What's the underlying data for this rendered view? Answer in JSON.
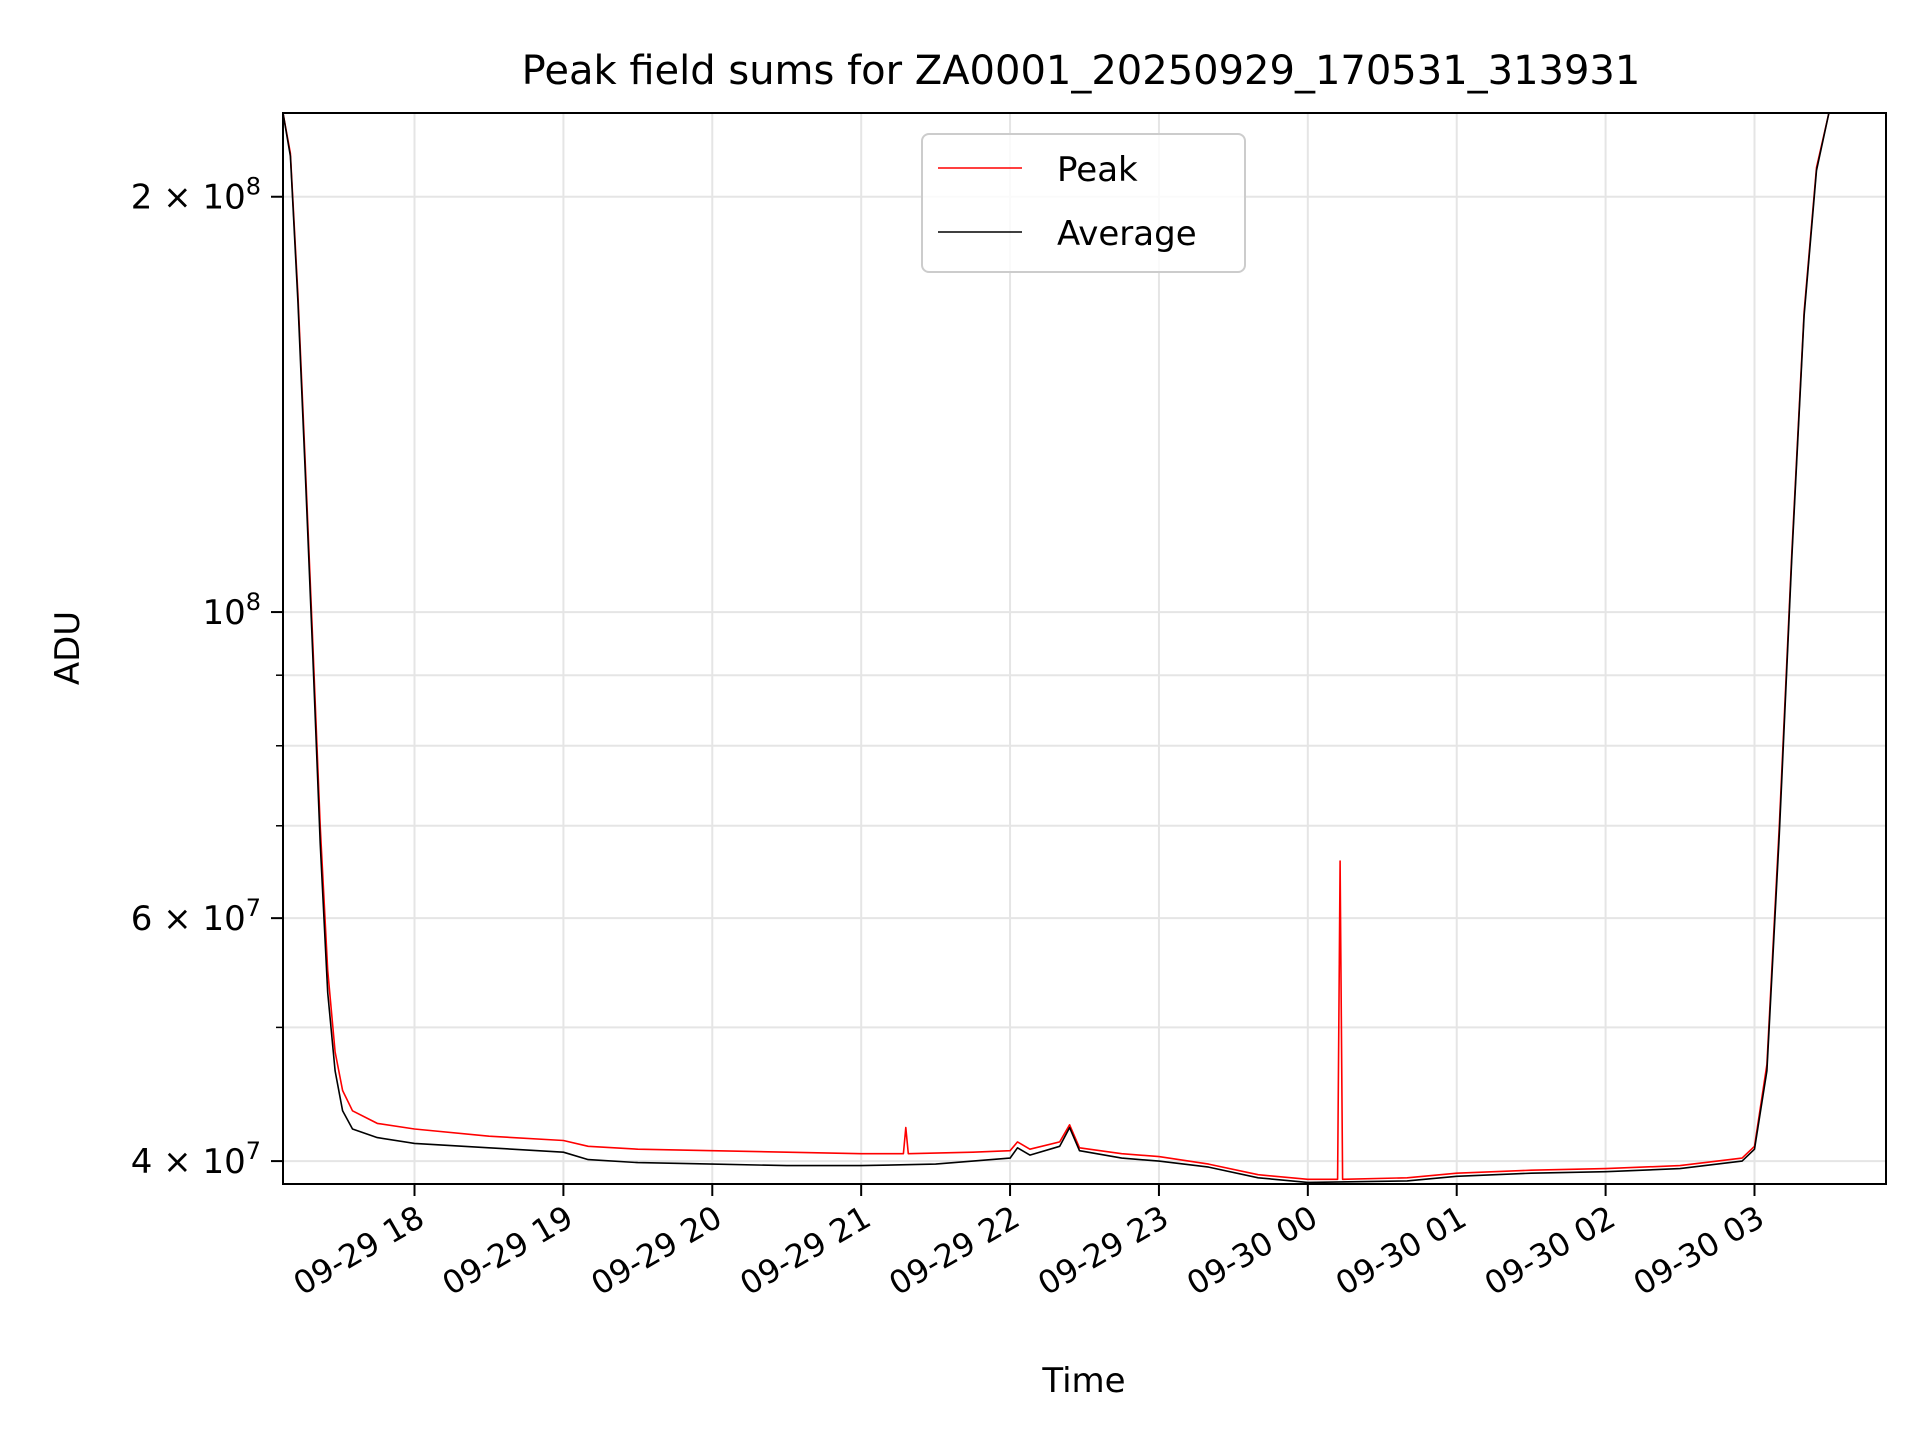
{
  "chart_data": {
    "type": "line",
    "title": "Peak field sums for ZA0001_20250929_170531_313931",
    "xlabel": "Time",
    "ylabel": "ADU",
    "y_scale": "log",
    "ylim": [
      38500000,
      230000000
    ],
    "xlim": [
      "2025-09-29 17:07",
      "2025-09-30 03:53"
    ],
    "grid": true,
    "legend_position": "upper center",
    "x_ticks": [
      {
        "value": "2025-09-29 18:00",
        "label": "09-29 18"
      },
      {
        "value": "2025-09-29 19:00",
        "label": "09-29 19"
      },
      {
        "value": "2025-09-29 20:00",
        "label": "09-29 20"
      },
      {
        "value": "2025-09-29 21:00",
        "label": "09-29 21"
      },
      {
        "value": "2025-09-29 22:00",
        "label": "09-29 22"
      },
      {
        "value": "2025-09-29 23:00",
        "label": "09-29 23"
      },
      {
        "value": "2025-09-30 00:00",
        "label": "09-30 00"
      },
      {
        "value": "2025-09-30 01:00",
        "label": "09-30 01"
      },
      {
        "value": "2025-09-30 02:00",
        "label": "09-30 02"
      },
      {
        "value": "2025-09-30 03:00",
        "label": "09-30 03"
      }
    ],
    "y_major_ticks": [
      {
        "value": 40000000,
        "mantissa": "4",
        "exponent": "7"
      },
      {
        "value": 60000000,
        "mantissa": "6",
        "exponent": "7"
      },
      {
        "value": 100000000,
        "mantissa": "",
        "exponent": "8"
      },
      {
        "value": 200000000,
        "mantissa": "2",
        "exponent": "8"
      }
    ],
    "y_minor_ticks": [
      50000000,
      70000000,
      80000000,
      90000000
    ],
    "series": [
      {
        "name": "Peak",
        "color": "#ff0000",
        "points": [
          [
            "2025-09-29 17:07",
            230000000
          ],
          [
            "2025-09-29 17:10",
            215000000
          ],
          [
            "2025-09-29 17:13",
            170000000
          ],
          [
            "2025-09-29 17:16",
            128000000
          ],
          [
            "2025-09-29 17:19",
            95000000
          ],
          [
            "2025-09-29 17:22",
            70000000
          ],
          [
            "2025-09-29 17:25",
            55000000
          ],
          [
            "2025-09-29 17:28",
            48000000
          ],
          [
            "2025-09-29 17:31",
            45000000
          ],
          [
            "2025-09-29 17:35",
            43500000
          ],
          [
            "2025-09-29 17:45",
            42600000
          ],
          [
            "2025-09-29 18:00",
            42200000
          ],
          [
            "2025-09-29 18:30",
            41700000
          ],
          [
            "2025-09-29 19:00",
            41400000
          ],
          [
            "2025-09-29 19:10",
            41000000
          ],
          [
            "2025-09-29 19:30",
            40800000
          ],
          [
            "2025-09-29 20:00",
            40700000
          ],
          [
            "2025-09-29 20:30",
            40600000
          ],
          [
            "2025-09-29 21:00",
            40500000
          ],
          [
            "2025-09-29 21:17",
            40500000
          ],
          [
            "2025-09-29 21:18",
            42300000
          ],
          [
            "2025-09-29 21:19",
            40500000
          ],
          [
            "2025-09-29 21:45",
            40600000
          ],
          [
            "2025-09-29 22:00",
            40700000
          ],
          [
            "2025-09-29 22:03",
            41300000
          ],
          [
            "2025-09-29 22:08",
            40800000
          ],
          [
            "2025-09-29 22:20",
            41300000
          ],
          [
            "2025-09-29 22:24",
            42500000
          ],
          [
            "2025-09-29 22:28",
            40900000
          ],
          [
            "2025-09-29 22:45",
            40500000
          ],
          [
            "2025-09-29 23:00",
            40300000
          ],
          [
            "2025-09-29 23:20",
            39800000
          ],
          [
            "2025-09-29 23:40",
            39100000
          ],
          [
            "2025-09-30 00:00",
            38800000
          ],
          [
            "2025-09-30 00:12",
            38800000
          ],
          [
            "2025-09-30 00:13",
            66000000
          ],
          [
            "2025-09-30 00:14",
            38800000
          ],
          [
            "2025-09-30 00:40",
            38900000
          ],
          [
            "2025-09-30 01:00",
            39200000
          ],
          [
            "2025-09-30 01:30",
            39400000
          ],
          [
            "2025-09-30 02:00",
            39500000
          ],
          [
            "2025-09-30 02:30",
            39700000
          ],
          [
            "2025-09-30 02:55",
            40200000
          ],
          [
            "2025-09-30 03:00",
            41000000
          ],
          [
            "2025-09-30 03:05",
            47000000
          ],
          [
            "2025-09-30 03:10",
            70000000
          ],
          [
            "2025-09-30 03:15",
            110000000
          ],
          [
            "2025-09-30 03:20",
            165000000
          ],
          [
            "2025-09-30 03:25",
            210000000
          ],
          [
            "2025-09-30 03:30",
            230000000
          ],
          [
            "2025-09-30 03:53",
            230000000
          ]
        ]
      },
      {
        "name": "Average",
        "color": "#000000",
        "points": [
          [
            "2025-09-29 17:07",
            230000000
          ],
          [
            "2025-09-29 17:10",
            214000000
          ],
          [
            "2025-09-29 17:13",
            168000000
          ],
          [
            "2025-09-29 17:16",
            126000000
          ],
          [
            "2025-09-29 17:19",
            93000000
          ],
          [
            "2025-09-29 17:22",
            68000000
          ],
          [
            "2025-09-29 17:25",
            53000000
          ],
          [
            "2025-09-29 17:28",
            46500000
          ],
          [
            "2025-09-29 17:31",
            43500000
          ],
          [
            "2025-09-29 17:35",
            42200000
          ],
          [
            "2025-09-29 17:45",
            41600000
          ],
          [
            "2025-09-29 18:00",
            41200000
          ],
          [
            "2025-09-29 18:30",
            40900000
          ],
          [
            "2025-09-29 19:00",
            40600000
          ],
          [
            "2025-09-29 19:10",
            40100000
          ],
          [
            "2025-09-29 19:30",
            39900000
          ],
          [
            "2025-09-29 20:00",
            39800000
          ],
          [
            "2025-09-29 20:30",
            39700000
          ],
          [
            "2025-09-29 21:00",
            39700000
          ],
          [
            "2025-09-29 21:30",
            39800000
          ],
          [
            "2025-09-29 22:00",
            40200000
          ],
          [
            "2025-09-29 22:03",
            40900000
          ],
          [
            "2025-09-29 22:08",
            40400000
          ],
          [
            "2025-09-29 22:20",
            41000000
          ],
          [
            "2025-09-29 22:24",
            42300000
          ],
          [
            "2025-09-29 22:28",
            40700000
          ],
          [
            "2025-09-29 22:45",
            40200000
          ],
          [
            "2025-09-29 23:00",
            40000000
          ],
          [
            "2025-09-29 23:20",
            39600000
          ],
          [
            "2025-09-29 23:40",
            38900000
          ],
          [
            "2025-09-30 00:00",
            38600000
          ],
          [
            "2025-09-30 00:40",
            38700000
          ],
          [
            "2025-09-30 01:00",
            39000000
          ],
          [
            "2025-09-30 01:30",
            39200000
          ],
          [
            "2025-09-30 02:00",
            39300000
          ],
          [
            "2025-09-30 02:30",
            39500000
          ],
          [
            "2025-09-30 02:55",
            40000000
          ],
          [
            "2025-09-30 03:00",
            40800000
          ],
          [
            "2025-09-30 03:05",
            46500000
          ],
          [
            "2025-09-30 03:10",
            69000000
          ],
          [
            "2025-09-30 03:15",
            109000000
          ],
          [
            "2025-09-30 03:20",
            164000000
          ],
          [
            "2025-09-30 03:25",
            209000000
          ],
          [
            "2025-09-30 03:30",
            230000000
          ],
          [
            "2025-09-30 03:53",
            230000000
          ]
        ]
      }
    ]
  }
}
